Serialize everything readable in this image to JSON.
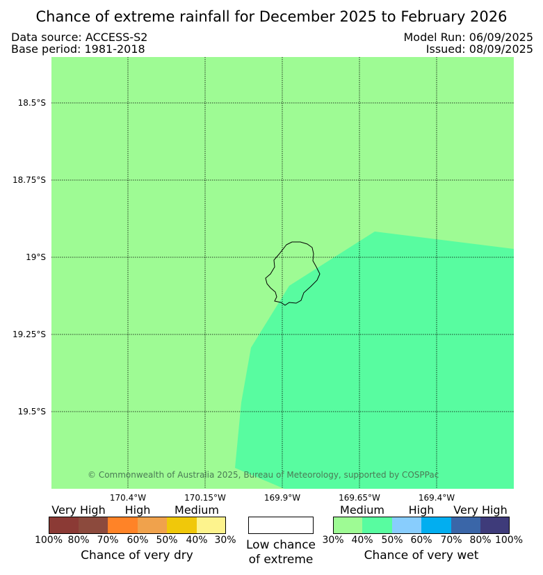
{
  "header": {
    "title": "Chance of extreme rainfall for December 2025 to February 2026",
    "data_source": "Data source: ACCESS-S2",
    "base_period": "Base period: 1981-2018",
    "model_run": "Model Run: 06/09/2025",
    "issued": "Issued: 08/09/2025"
  },
  "map": {
    "copyright": "© Commonwealth of Australia 2025, Bureau of Meteorology, supported by COSPPac",
    "colors": {
      "background": "#9efb94",
      "wet_medium_40_50": "#58fca0",
      "coastline": "#000000"
    },
    "lat_labels": [
      "18.5°S",
      "18.75°S",
      "19°S",
      "19.25°S",
      "19.5°S"
    ],
    "lon_labels": [
      "170.4°W",
      "170.15°W",
      "169.9°W",
      "169.65°W",
      "169.4°W"
    ]
  },
  "legend": {
    "dry": {
      "categories": [
        "Very High",
        "High",
        "Medium"
      ],
      "percent_labels": [
        "100%",
        "80%",
        "70%",
        "60%",
        "50%",
        "40%",
        "30%"
      ],
      "colors": [
        "#8b3a35",
        "#8c4a3d",
        "#ff8327",
        "#f0a24c",
        "#f0c80a",
        "#fdf38d"
      ],
      "caption": "Chance of very dry"
    },
    "low": {
      "caption_line1": "Low chance",
      "caption_line2": "of extreme"
    },
    "wet": {
      "categories": [
        "Medium",
        "High",
        "Very High"
      ],
      "percent_labels": [
        "30%",
        "40%",
        "50%",
        "60%",
        "70%",
        "80%",
        "100%"
      ],
      "colors": [
        "#9efb94",
        "#58fca0",
        "#88cdfd",
        "#02aef0",
        "#3a66a8",
        "#3e3b7a"
      ],
      "caption": "Chance of very wet"
    }
  }
}
